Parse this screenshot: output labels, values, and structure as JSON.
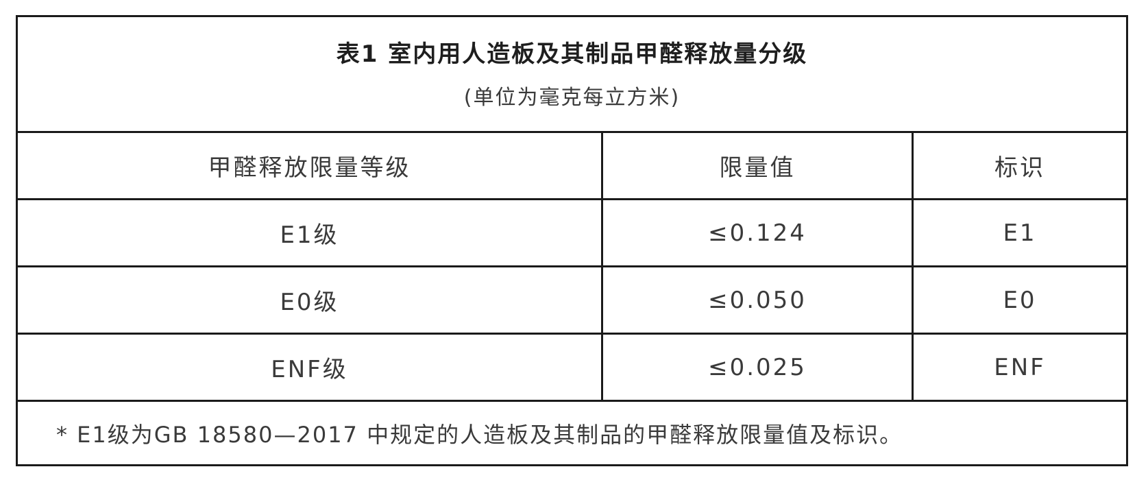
{
  "table": {
    "title": "表1  室内用人造板及其制品甲醛释放量分级",
    "unit": "(单位为毫克每立方米)",
    "headers": [
      "甲醛释放限量等级",
      "限量值",
      "标识"
    ],
    "rows": [
      [
        "E1级",
        "≤0.124",
        "E1"
      ],
      [
        "E0级",
        "≤0.050",
        "E0"
      ],
      [
        "ENF级",
        "≤0.025",
        "ENF"
      ]
    ],
    "footnote": "* E1级为GB 18580—2017 中规定的人造板及其制品的甲醛释放限量值及标识。"
  }
}
